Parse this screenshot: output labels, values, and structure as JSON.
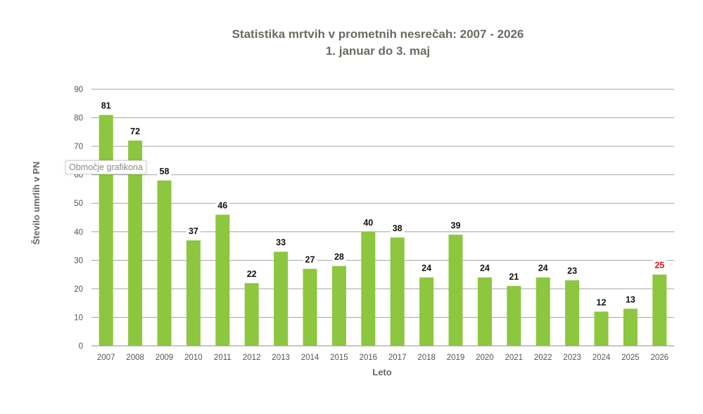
{
  "chart_data": {
    "type": "bar",
    "title": "Statistika mrtvih v prometnih nesrečah: 2007 - 2026",
    "subtitle": "1. januar do 3. maj",
    "xlabel": "Leto",
    "ylabel": "Število umrlih v PN",
    "categories": [
      "2007",
      "2008",
      "2009",
      "2010",
      "2011",
      "2012",
      "2013",
      "2014",
      "2015",
      "2016",
      "2017",
      "2018",
      "2019",
      "2020",
      "2021",
      "2022",
      "2023",
      "2024",
      "2025",
      "2026"
    ],
    "values": [
      81,
      72,
      58,
      37,
      46,
      22,
      33,
      27,
      28,
      40,
      38,
      24,
      39,
      24,
      21,
      24,
      23,
      12,
      13,
      25
    ],
    "ylim": [
      0,
      90
    ],
    "yticks": [
      0,
      10,
      20,
      30,
      40,
      50,
      60,
      70,
      80,
      90
    ],
    "grid": true,
    "highlight_index": 19,
    "colors": {
      "bar": "#8dc63f",
      "grid": "#a6a6a6",
      "highlight_label": "#e8141b"
    }
  },
  "tooltip": {
    "text": "Območje grafikona"
  }
}
